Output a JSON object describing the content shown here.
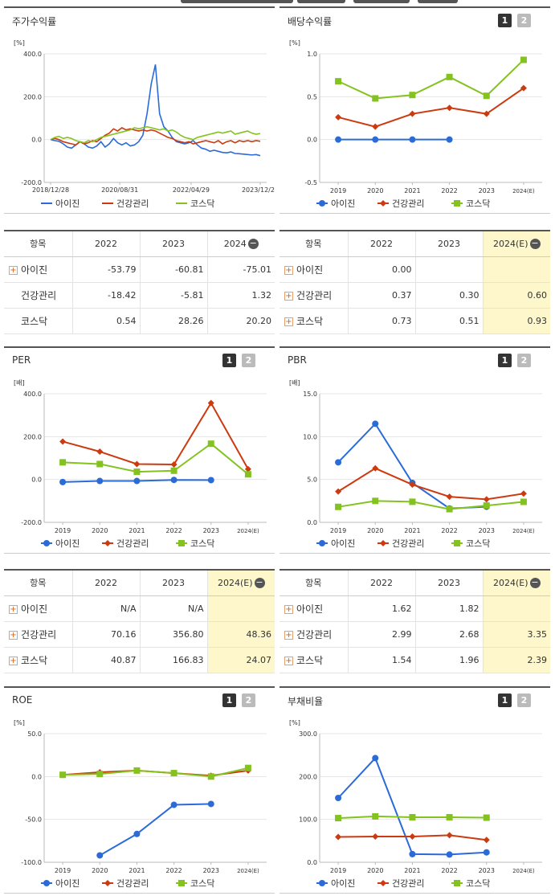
{
  "colors": {
    "s1": "#2a6bd8",
    "s2": "#cc3a10",
    "s3": "#84c31f",
    "highlight": "#fdf7cb"
  },
  "legend": [
    "아이진",
    "건강관리",
    "코스닥"
  ],
  "panels": {
    "stock": {
      "title": "주가수익률"
    },
    "div": {
      "title": "배당수익률"
    },
    "per": {
      "title": "PER"
    },
    "pbr": {
      "title": "PBR"
    },
    "roe": {
      "title": "ROE"
    },
    "debt": {
      "title": "부채비율"
    }
  },
  "buttons": {
    "b1": "1",
    "b2": "2"
  },
  "tables": {
    "stock": {
      "head": [
        "항목",
        "2022",
        "2023",
        "2024"
      ],
      "rows": [
        [
          "아이진",
          "-53.79",
          "-60.81",
          "-75.01"
        ],
        [
          "건강관리",
          "-18.42",
          "-5.81",
          "1.32"
        ],
        [
          "코스닥",
          "0.54",
          "28.26",
          "20.20"
        ]
      ]
    },
    "div": {
      "head": [
        "항목",
        "2022",
        "2023",
        "2024(E)"
      ],
      "rows": [
        [
          "아이진",
          "0.00",
          "",
          ""
        ],
        [
          "건강관리",
          "0.37",
          "0.30",
          "0.60"
        ],
        [
          "코스닥",
          "0.73",
          "0.51",
          "0.93"
        ]
      ]
    },
    "per": {
      "head": [
        "항목",
        "2022",
        "2023",
        "2024(E)"
      ],
      "rows": [
        [
          "아이진",
          "N/A",
          "N/A",
          ""
        ],
        [
          "건강관리",
          "70.16",
          "356.80",
          "48.36"
        ],
        [
          "코스닥",
          "40.87",
          "166.83",
          "24.07"
        ]
      ]
    },
    "pbr": {
      "head": [
        "항목",
        "2022",
        "2023",
        "2024(E)"
      ],
      "rows": [
        [
          "아이진",
          "1.62",
          "1.82",
          ""
        ],
        [
          "건강관리",
          "2.99",
          "2.68",
          "3.35"
        ],
        [
          "코스닥",
          "1.54",
          "1.96",
          "2.39"
        ]
      ]
    }
  },
  "chart_data": [
    {
      "id": "stock",
      "type": "line",
      "unit": "[%]",
      "ylim": [
        -200,
        400
      ],
      "yticks": [
        "400.0",
        "200.0",
        "0.0",
        "-200.0"
      ],
      "xticks": [
        "2018/12/28",
        "2020/08/31",
        "2022/04/29",
        "2023/12/28"
      ],
      "series": [
        {
          "name": "아이진",
          "x": [
            0,
            2,
            4,
            6,
            8,
            10,
            12,
            14,
            16,
            18,
            20,
            22,
            24,
            26,
            28,
            30,
            32,
            34,
            36,
            38,
            40,
            42,
            44,
            46,
            48,
            50,
            52,
            54,
            56,
            58,
            60,
            62,
            64,
            66,
            68,
            70,
            72,
            74,
            76,
            78,
            80,
            82,
            84,
            86,
            88,
            90,
            92,
            94,
            96,
            98,
            100
          ],
          "values": [
            0,
            -5,
            -8,
            -20,
            -35,
            -40,
            -25,
            -10,
            -20,
            -35,
            -40,
            -30,
            -10,
            -35,
            -20,
            5,
            -15,
            -25,
            -15,
            -30,
            -25,
            -10,
            20,
            120,
            260,
            350,
            120,
            60,
            40,
            10,
            -10,
            -15,
            -20,
            -15,
            -5,
            -25,
            -40,
            -45,
            -55,
            -50,
            -55,
            -60,
            -62,
            -58,
            -65,
            -66,
            -68,
            -70,
            -72,
            -70,
            -75
          ]
        },
        {
          "name": "건강관리",
          "x": [
            0,
            2,
            4,
            6,
            8,
            10,
            12,
            14,
            16,
            18,
            20,
            22,
            24,
            26,
            28,
            30,
            32,
            34,
            36,
            38,
            40,
            42,
            44,
            46,
            48,
            50,
            52,
            54,
            56,
            58,
            60,
            62,
            64,
            66,
            68,
            70,
            72,
            74,
            76,
            78,
            80,
            82,
            84,
            86,
            88,
            90,
            92,
            94,
            96,
            98,
            100
          ],
          "values": [
            0,
            5,
            0,
            -10,
            -15,
            -20,
            -25,
            -10,
            -20,
            -15,
            -5,
            -10,
            5,
            20,
            30,
            50,
            40,
            55,
            45,
            50,
            45,
            40,
            45,
            40,
            45,
            40,
            30,
            20,
            10,
            5,
            -5,
            -10,
            -15,
            -10,
            -20,
            -15,
            -10,
            -5,
            -10,
            -15,
            -5,
            -20,
            -10,
            -5,
            -15,
            -5,
            -10,
            -5,
            -10,
            -5,
            -8
          ]
        },
        {
          "name": "코스닥",
          "x": [
            0,
            2,
            4,
            6,
            8,
            10,
            12,
            14,
            16,
            18,
            20,
            22,
            24,
            26,
            28,
            30,
            32,
            34,
            36,
            38,
            40,
            42,
            44,
            46,
            48,
            50,
            52,
            54,
            56,
            58,
            60,
            62,
            64,
            66,
            68,
            70,
            72,
            74,
            76,
            78,
            80,
            82,
            84,
            86,
            88,
            90,
            92,
            94,
            96,
            98,
            100
          ],
          "values": [
            0,
            10,
            15,
            5,
            10,
            5,
            -5,
            -10,
            -15,
            -5,
            -10,
            0,
            10,
            15,
            20,
            25,
            30,
            35,
            40,
            45,
            55,
            50,
            55,
            60,
            55,
            50,
            45,
            50,
            40,
            45,
            35,
            20,
            10,
            5,
            0,
            10,
            15,
            20,
            25,
            30,
            35,
            30,
            35,
            40,
            25,
            30,
            35,
            40,
            30,
            25,
            28
          ]
        }
      ]
    },
    {
      "id": "div",
      "type": "line",
      "unit": "[%]",
      "ylim": [
        -0.5,
        1.0
      ],
      "yticks": [
        "1.0",
        "0.5",
        "0.0",
        "-0.5"
      ],
      "categories": [
        "2019",
        "2020",
        "2021",
        "2022",
        "2023",
        "2024(E)"
      ],
      "series": [
        {
          "name": "아이진",
          "values": [
            0.0,
            0.0,
            0.0,
            0.0,
            null,
            null
          ]
        },
        {
          "name": "건강관리",
          "values": [
            0.26,
            0.15,
            0.3,
            0.37,
            0.3,
            0.6
          ]
        },
        {
          "name": "코스닥",
          "values": [
            0.68,
            0.48,
            0.52,
            0.73,
            0.51,
            0.93
          ]
        }
      ]
    },
    {
      "id": "per",
      "type": "line",
      "unit": "[배]",
      "ylim": [
        -200,
        400
      ],
      "yticks": [
        "400.0",
        "200.0",
        "0.0",
        "-200.0"
      ],
      "categories": [
        "2019",
        "2020",
        "2021",
        "2022",
        "2023",
        "2024(E)"
      ],
      "series": [
        {
          "name": "아이진",
          "values": [
            -12,
            -7,
            -7,
            -2,
            -3,
            null
          ]
        },
        {
          "name": "건강관리",
          "values": [
            177,
            130,
            72,
            70.16,
            356.8,
            48.36
          ]
        },
        {
          "name": "코스닥",
          "values": [
            80,
            72,
            36,
            40.87,
            166.83,
            24.07
          ]
        }
      ]
    },
    {
      "id": "pbr",
      "type": "line",
      "unit": "[배]",
      "ylim": [
        0,
        15
      ],
      "yticks": [
        "15.0",
        "10.0",
        "5.0",
        "0.0"
      ],
      "categories": [
        "2019",
        "2020",
        "2021",
        "2022",
        "2023",
        "2024(E)"
      ],
      "series": [
        {
          "name": "아이진",
          "values": [
            7.0,
            11.5,
            4.6,
            1.62,
            1.82,
            null
          ]
        },
        {
          "name": "건강관리",
          "values": [
            3.6,
            6.3,
            4.4,
            2.99,
            2.68,
            3.35
          ]
        },
        {
          "name": "코스닥",
          "values": [
            1.8,
            2.5,
            2.4,
            1.54,
            1.96,
            2.39
          ]
        }
      ]
    },
    {
      "id": "roe",
      "type": "line",
      "unit": "[%]",
      "ylim": [
        -100,
        50
      ],
      "yticks": [
        "50.0",
        "0.0",
        "-50.0",
        "-100.0"
      ],
      "categories": [
        "2019",
        "2020",
        "2021",
        "2022",
        "2023",
        "2024(E)"
      ],
      "series": [
        {
          "name": "아이진",
          "values": [
            null,
            -92,
            -67,
            -33,
            -32,
            null
          ]
        },
        {
          "name": "건강관리",
          "values": [
            2,
            5,
            7,
            4,
            1,
            7
          ]
        },
        {
          "name": "코스닥",
          "values": [
            2,
            3,
            7,
            4,
            0,
            10
          ]
        }
      ]
    },
    {
      "id": "debt",
      "type": "line",
      "unit": "[%]",
      "ylim": [
        0,
        300
      ],
      "yticks": [
        "300.0",
        "200.0",
        "100.0",
        "0.0"
      ],
      "categories": [
        "2019",
        "2020",
        "2021",
        "2022",
        "2023",
        "2024(E)"
      ],
      "series": [
        {
          "name": "아이진",
          "values": [
            150,
            243,
            19,
            18,
            23,
            null
          ]
        },
        {
          "name": "건강관리",
          "values": [
            59,
            60,
            60,
            63,
            52,
            null
          ]
        },
        {
          "name": "코스닥",
          "values": [
            103,
            107,
            105,
            105,
            104,
            null
          ]
        }
      ]
    }
  ]
}
